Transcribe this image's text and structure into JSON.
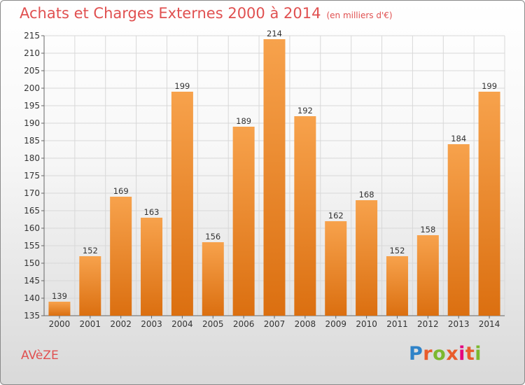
{
  "title": "Achats et Charges Externes 2000 à 2014",
  "unit": "(en milliers d'€)",
  "commune": "AVèZE",
  "logo": "Proxiti",
  "colors": {
    "accent": "#e05050",
    "bar_light": "#f7a24c",
    "bar_dark": "#db6f10",
    "logo_letters": [
      "#2f83c8",
      "#e95b2b",
      "#7cb82f",
      "#e95b2b",
      "#e5007e",
      "#e95b2b",
      "#7cb82f"
    ]
  },
  "chart_data": {
    "type": "bar",
    "categories": [
      "2000",
      "2001",
      "2002",
      "2003",
      "2004",
      "2005",
      "2006",
      "2007",
      "2008",
      "2009",
      "2010",
      "2011",
      "2012",
      "2013",
      "2014"
    ],
    "values": [
      139,
      152,
      169,
      163,
      199,
      156,
      189,
      214,
      192,
      162,
      168,
      152,
      158,
      184,
      199
    ],
    "ylim": [
      135,
      215
    ],
    "yticks": [
      135,
      140,
      145,
      150,
      155,
      160,
      165,
      170,
      175,
      180,
      185,
      190,
      195,
      200,
      205,
      210,
      215
    ],
    "grid": true,
    "data_labels": true
  }
}
